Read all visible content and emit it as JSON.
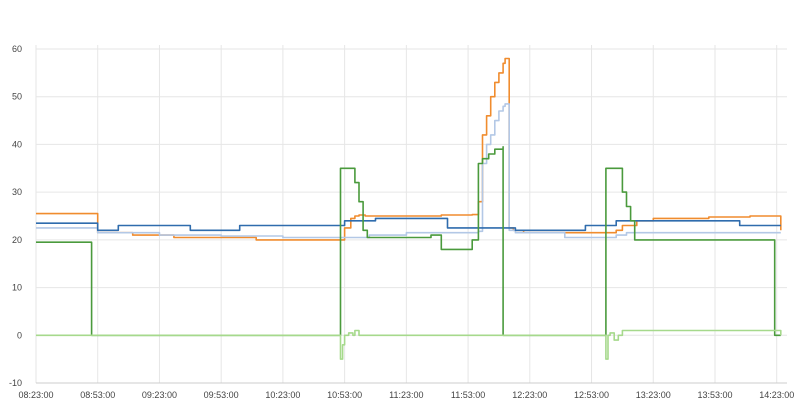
{
  "chart_data": {
    "type": "line",
    "title": "",
    "xlabel": "",
    "ylabel": "",
    "ylim": [
      -10,
      60
    ],
    "xlim": [
      "08:23:00",
      "14:28:00"
    ],
    "grid": true,
    "y_ticks": [
      "-10",
      "0",
      "10",
      "20",
      "30",
      "40",
      "50",
      "60"
    ],
    "x_ticks": [
      "08:23:00",
      "08:53:00",
      "09:23:00",
      "09:53:00",
      "10:23:00",
      "10:53:00",
      "11:23:00",
      "11:53:00",
      "12:23:00",
      "12:53:00",
      "13:23:00",
      "13:53:00",
      "14:23:00"
    ],
    "series": [
      {
        "color": "#f08c2e",
        "x": [
          "08:23:00",
          "08:50:00",
          "08:53:00",
          "09:10:00",
          "09:30:00",
          "09:50:00",
          "10:10:00",
          "10:30:00",
          "10:51:00",
          "10:53:00",
          "10:56:00",
          "10:58:00",
          "11:00:00",
          "11:03:00",
          "11:10:00",
          "11:23:00",
          "11:40:00",
          "11:55:00",
          "11:58:00",
          "12:00:00",
          "12:02:00",
          "12:04:00",
          "12:06:00",
          "12:08:00",
          "12:10:00",
          "12:11:00",
          "12:13:00",
          "12:15:00",
          "12:20:00",
          "12:40:00",
          "13:00:00",
          "13:05:00",
          "13:08:00",
          "13:15:00",
          "13:23:00",
          "13:50:00",
          "14:10:00",
          "14:23:00",
          "14:25:00"
        ],
        "y": [
          25.5,
          25.5,
          21.5,
          21,
          20.5,
          20.5,
          20,
          20,
          20,
          22.5,
          24.5,
          25,
          25.2,
          25,
          25,
          25,
          25.2,
          25.3,
          28,
          42,
          46,
          50,
          53,
          55,
          57,
          58,
          22.5,
          22,
          21.5,
          21.5,
          21.5,
          22,
          23,
          24,
          24.5,
          24.8,
          25,
          25,
          22
        ]
      },
      {
        "color": "#b3c8e6",
        "x": [
          "08:23:00",
          "08:50:00",
          "08:53:00",
          "09:23:00",
          "09:53:00",
          "10:23:00",
          "10:51:00",
          "10:53:00",
          "10:58:00",
          "11:05:00",
          "11:23:00",
          "11:45:00",
          "11:58:00",
          "12:00:00",
          "12:02:00",
          "12:04:00",
          "12:06:00",
          "12:08:00",
          "12:10:00",
          "12:11:00",
          "12:13:00",
          "12:16:00",
          "12:40:00",
          "13:00:00",
          "13:05:00",
          "13:10:00",
          "13:20:00",
          "13:40:00",
          "14:00:00",
          "14:25:00"
        ],
        "y": [
          22.5,
          22.5,
          21.5,
          21,
          20.8,
          20.5,
          20.5,
          20.5,
          20.5,
          21,
          21.5,
          21.5,
          21.8,
          36,
          40,
          42,
          45,
          47,
          48,
          48.5,
          22,
          21.5,
          20.5,
          20.5,
          21,
          21.5,
          21.5,
          21.5,
          21.5,
          21.5
        ]
      },
      {
        "color": "#2f6cad",
        "x": [
          "08:23:00",
          "08:50:00",
          "08:53:00",
          "09:00:00",
          "09:03:00",
          "09:35:00",
          "09:38:00",
          "10:00:00",
          "10:02:00",
          "10:51:00",
          "10:53:00",
          "11:08:00",
          "11:40:00",
          "11:43:00",
          "11:58:00",
          "12:13:00",
          "12:16:00",
          "12:45:00",
          "12:50:00",
          "13:00:00",
          "13:05:00",
          "13:10:00",
          "13:50:00",
          "14:05:00",
          "14:25:00"
        ],
        "y": [
          23.5,
          23.5,
          22,
          22,
          23,
          23,
          22,
          22,
          23,
          23,
          24,
          24.5,
          24.5,
          22.5,
          22.5,
          22.5,
          22,
          22,
          23,
          23,
          24,
          24,
          24,
          23,
          23
        ]
      },
      {
        "color": "#4a9a3c",
        "x": [
          "08:23:00",
          "08:50:00",
          "08:50:00",
          "10:51:00",
          "10:51:00",
          "10:56:00",
          "10:58:00",
          "11:00:00",
          "11:02:00",
          "11:04:00",
          "11:23:00",
          "11:35:00",
          "11:40:00",
          "11:55:00",
          "11:58:00",
          "12:00:00",
          "12:03:00",
          "12:06:00",
          "12:10:00",
          "12:10:00",
          "13:00:00",
          "13:00:00",
          "13:05:00",
          "13:08:00",
          "13:10:00",
          "13:12:00",
          "13:14:00",
          "13:23:00",
          "14:20:00",
          "14:22:00",
          "14:22:00",
          "14:25:00"
        ],
        "y": [
          19.5,
          19.5,
          0,
          0,
          35,
          35,
          32,
          28,
          22,
          20.5,
          20.5,
          21,
          18,
          20,
          36,
          37,
          38,
          39,
          39.5,
          0,
          0,
          35,
          35,
          30,
          27,
          24,
          20,
          20,
          20,
          20,
          0,
          0
        ]
      },
      {
        "color": "#a6d98c",
        "x": [
          "08:23:00",
          "10:50:00",
          "10:51:00",
          "10:52:00",
          "10:53:00",
          "10:55:00",
          "10:57:00",
          "10:58:00",
          "11:00:00",
          "12:59:00",
          "13:00:00",
          "13:01:00",
          "13:02:00",
          "13:04:00",
          "13:06:00",
          "13:08:00",
          "14:25:00"
        ],
        "y": [
          0,
          0,
          -5,
          -2,
          0,
          0.5,
          0,
          1,
          0,
          0,
          -5,
          0,
          0.5,
          -1,
          0,
          1,
          0
        ]
      }
    ]
  }
}
